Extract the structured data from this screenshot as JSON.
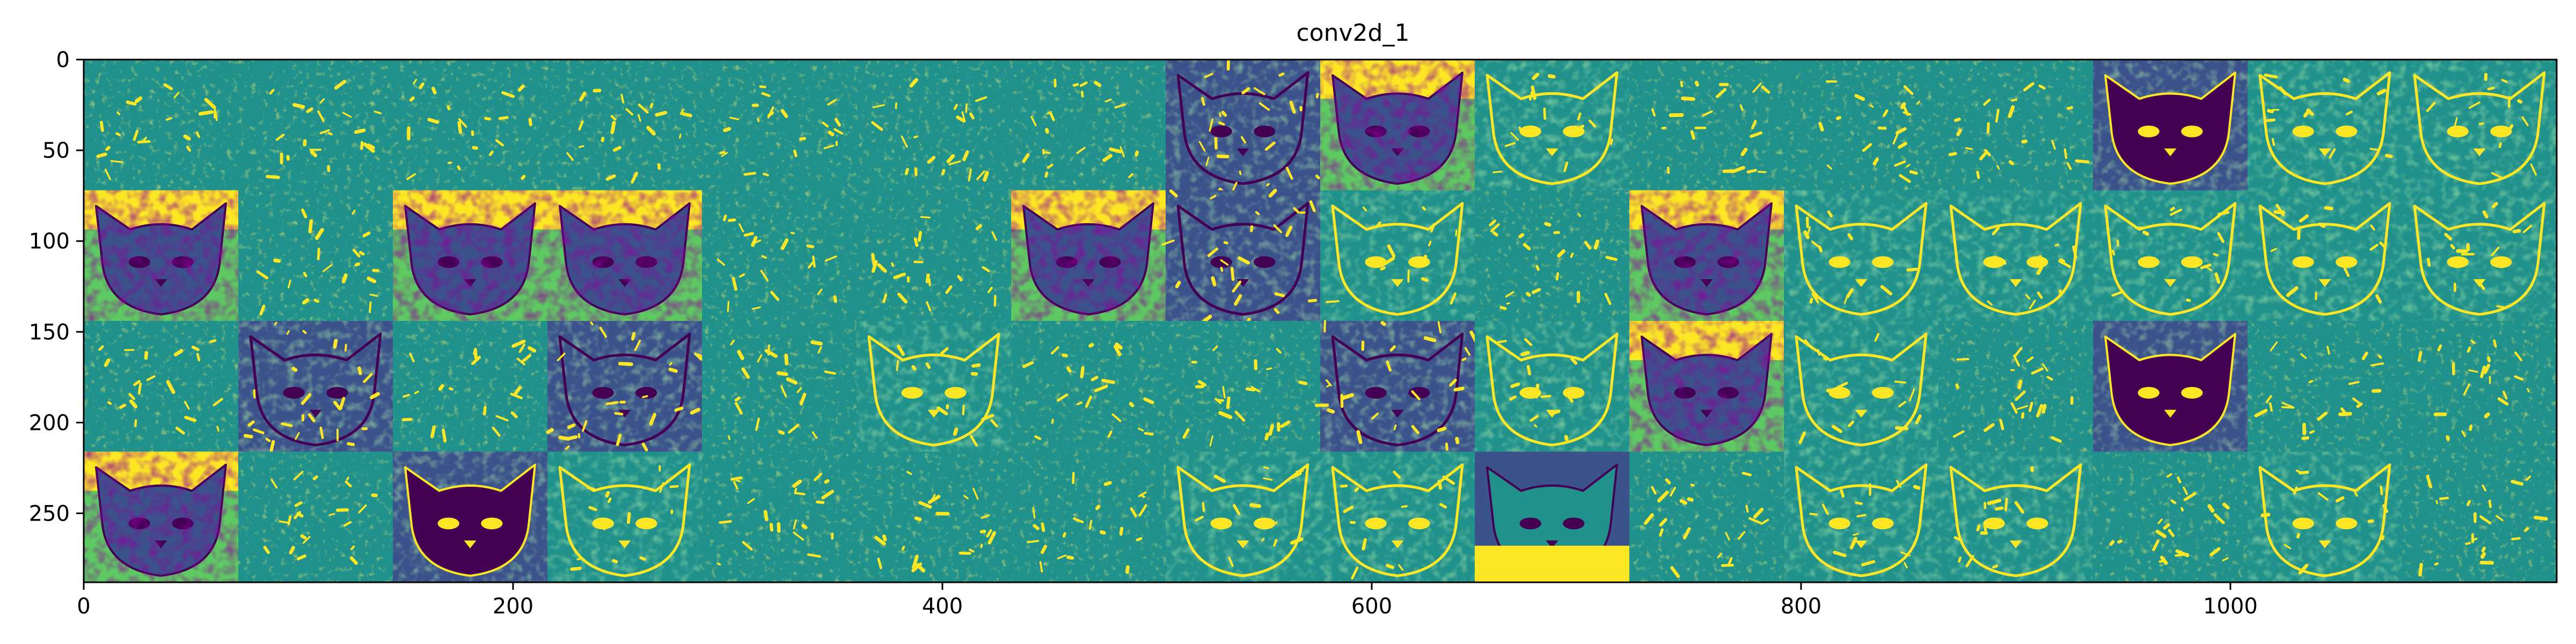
{
  "chart_data": {
    "type": "heatmap",
    "title": "conv2d_1",
    "xlabel": "",
    "ylabel": "",
    "xlim": [
      0,
      1152
    ],
    "ylim": [
      288,
      0
    ],
    "grid": false,
    "colormap": "viridis",
    "colors": [
      "#440154",
      "#3b528b",
      "#21918c",
      "#5ec962",
      "#fde725"
    ],
    "tiles": {
      "rows": 4,
      "cols": 16,
      "tile_size": 72
    },
    "x_ticks": [
      0,
      200,
      400,
      600,
      800,
      1000
    ],
    "y_ticks": [
      0,
      50,
      100,
      150,
      200,
      250
    ],
    "tile_styles": [
      [
        "sparse",
        "sparse",
        "sparse",
        "sparse",
        "sparse",
        "sparse",
        "sparse",
        "textured",
        "photo",
        "medium",
        "sparse",
        "sparse",
        "sparse",
        "inverted",
        "medium",
        "medium"
      ],
      [
        "photo",
        "sparse",
        "photo",
        "photo",
        "sparse",
        "sparse",
        "photo",
        "textured",
        "medium",
        "sparse",
        "photo",
        "medium",
        "medium",
        "medium",
        "medium",
        "medium"
      ],
      [
        "sparse",
        "textured",
        "sparse",
        "textured",
        "sparse",
        "medium",
        "sparse",
        "sparse",
        "textured",
        "medium",
        "photo",
        "medium",
        "sparse",
        "inverted",
        "sparse",
        "sparse"
      ],
      [
        "photo",
        "sparse",
        "inverted",
        "medium",
        "sparse",
        "sparse",
        "sparse",
        "medium",
        "medium",
        "bright",
        "sparse",
        "medium",
        "medium",
        "sparse",
        "medium",
        "sparse"
      ]
    ]
  }
}
